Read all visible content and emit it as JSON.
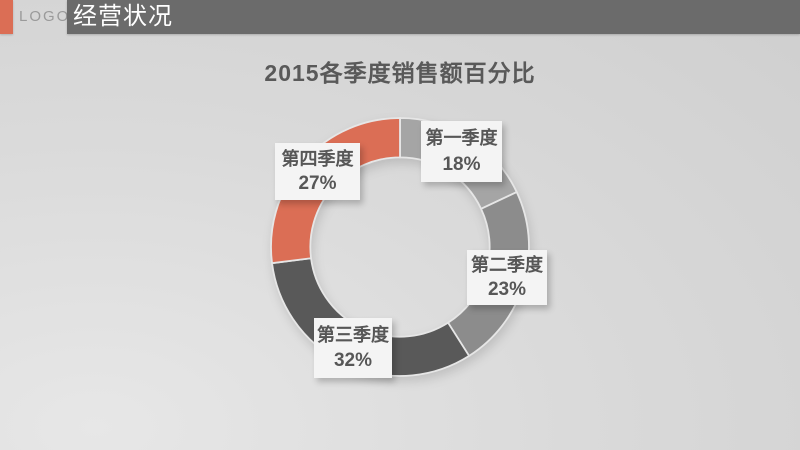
{
  "header": {
    "logo_text": "LOGO",
    "section_title": "经营状况",
    "accent_color": "#db6e55",
    "bar_color": "#6b6b6b"
  },
  "chart_data": {
    "type": "pie",
    "variant": "donut",
    "title": "2015各季度销售额百分比",
    "start_angle_deg": 0,
    "direction": "clockwise",
    "outer_radius_px": 129,
    "inner_radius_ratio": 0.695,
    "legend_position": "callout-labels",
    "segments": [
      {
        "label": "第一季度",
        "value": 18,
        "display": "18%",
        "color": "#a5a5a5"
      },
      {
        "label": "第二季度",
        "value": 23,
        "display": "23%",
        "color": "#8c8c8c"
      },
      {
        "label": "第三季度",
        "value": 32,
        "display": "32%",
        "color": "#595959"
      },
      {
        "label": "第四季度",
        "value": 27,
        "display": "27%",
        "color": "#db6e55"
      }
    ]
  }
}
